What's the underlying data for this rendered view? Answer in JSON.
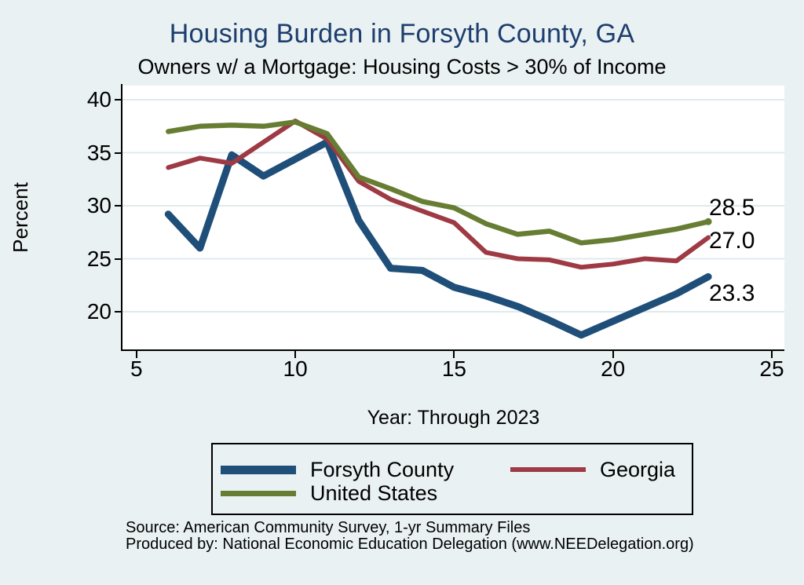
{
  "title": "Housing Burden in Forsyth County, GA",
  "subtitle": "Owners w/ a Mortgage: Housing Costs > 30% of Income",
  "colors": {
    "background": "#e9f1f2",
    "plot_background": "#ffffff",
    "gridline": "#dfeaec",
    "axis": "#000000",
    "title_text": "#1d3e6e",
    "forsyth_county": "#1f4e79",
    "georgia": "#9e3a44",
    "united_states": "#677d33"
  },
  "chart_data": {
    "type": "line",
    "x": [
      6,
      7,
      8,
      9,
      10,
      11,
      12,
      13,
      14,
      15,
      16,
      17,
      18,
      19,
      20,
      21,
      22,
      23
    ],
    "xlabel": "Year: Through 2023",
    "ylabel": "Percent",
    "xticks": [
      5,
      10,
      15,
      20,
      25
    ],
    "yticks": [
      20,
      25,
      30,
      35,
      40
    ],
    "xlim": [
      5,
      25
    ],
    "ylim": [
      16.5,
      41.3
    ],
    "grid": "horizontal",
    "legend_position": "bottom",
    "series": [
      {
        "name": "Forsyth County",
        "color": "#1f4e79",
        "stroke_width": 9,
        "values": [
          29.2,
          26.0,
          34.8,
          32.8,
          34.4,
          36.0,
          28.6,
          24.1,
          23.9,
          22.3,
          21.5,
          20.5,
          19.2,
          17.8,
          19.1,
          20.4,
          21.7,
          23.3
        ],
        "end_label": "23.3",
        "end_marker": false
      },
      {
        "name": "Georgia",
        "color": "#9e3a44",
        "stroke_width": 6,
        "values": [
          33.6,
          34.5,
          34.0,
          36.0,
          38.0,
          36.3,
          32.3,
          30.6,
          29.5,
          28.4,
          25.6,
          25.0,
          24.9,
          24.2,
          24.5,
          25.0,
          24.8,
          27.0
        ],
        "end_label": "27.0",
        "end_marker": false
      },
      {
        "name": "United States",
        "color": "#677d33",
        "stroke_width": 6.5,
        "values": [
          37.0,
          37.5,
          37.6,
          37.5,
          37.9,
          36.8,
          32.7,
          31.6,
          30.4,
          29.8,
          28.3,
          27.3,
          27.6,
          26.5,
          26.8,
          27.3,
          27.8,
          28.5
        ],
        "end_label": "28.5",
        "end_marker": true
      }
    ]
  },
  "footer": {
    "line1": "Source: American Community Survey, 1-yr Summary Files",
    "line2": "Produced by: National Economic Education Delegation (www.NEEDelegation.org)"
  }
}
